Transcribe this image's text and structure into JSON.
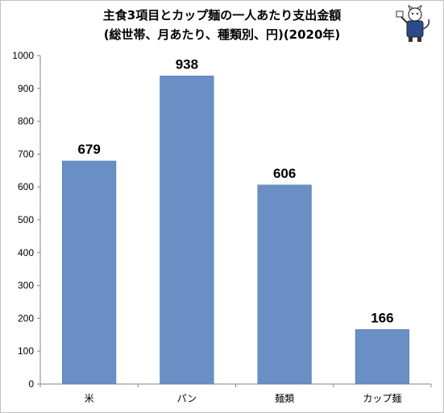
{
  "chart_data": {
    "type": "bar",
    "title": "主食3項目とカップ麺の一人あたり支出金額",
    "subtitle": "(総世帯、月あたり、種類別、円)(2020年)",
    "categories": [
      "米",
      "パン",
      "麺類",
      "カップ麺"
    ],
    "values": [
      679,
      938,
      606,
      166
    ],
    "data_labels": [
      "679",
      "938",
      "606",
      "166"
    ],
    "ylim": [
      0,
      1000
    ],
    "yticks": [
      0,
      100,
      200,
      300,
      400,
      500,
      600,
      700,
      800,
      900,
      1000
    ],
    "ytick_labels": [
      "0",
      "100",
      "200",
      "300",
      "400",
      "500",
      "600",
      "700",
      "800",
      "900",
      "1000"
    ],
    "grid": false,
    "colors": {
      "bar": "#6a8fc4",
      "bar_edge": "#4f75ad",
      "axis": "#868686"
    }
  },
  "mascot": {
    "icon": "cat-mascot-icon"
  }
}
